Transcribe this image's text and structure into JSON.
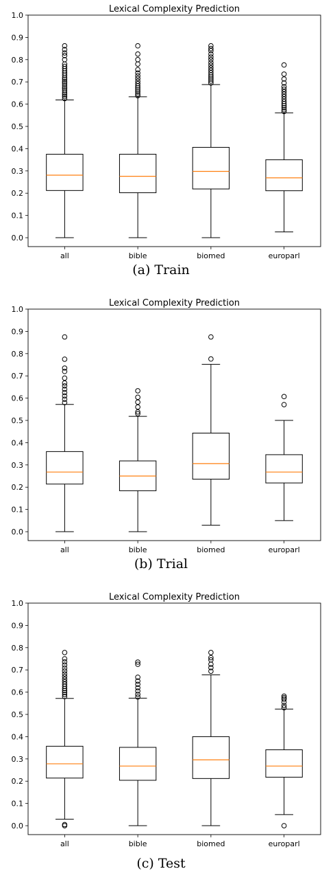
{
  "chart_data": [
    {
      "type": "box",
      "title": "Lexical Complexity Prediction",
      "caption": "(a) Train",
      "categories": [
        "all",
        "bible",
        "biomed",
        "europarl"
      ],
      "ylim": [
        -0.04,
        1.0
      ],
      "yticks": [
        "0.0",
        "0.1",
        "0.2",
        "0.3",
        "0.4",
        "0.5",
        "0.6",
        "0.7",
        "0.8",
        "0.9",
        "1.0"
      ],
      "boxes": [
        {
          "category": "all",
          "whisker_low": 0.0,
          "q1": 0.212,
          "median": 0.281,
          "q3": 0.375,
          "whisker_high": 0.619,
          "outliers": [
            0.625,
            0.634,
            0.642,
            0.65,
            0.66,
            0.669,
            0.677,
            0.686,
            0.695,
            0.703,
            0.712,
            0.72,
            0.73,
            0.74,
            0.75,
            0.76,
            0.77,
            0.78,
            0.8,
            0.818,
            0.83,
            0.845,
            0.862
          ]
        },
        {
          "category": "bible",
          "whisker_low": 0.0,
          "q1": 0.202,
          "median": 0.276,
          "q3": 0.375,
          "whisker_high": 0.633,
          "outliers": [
            0.638,
            0.646,
            0.655,
            0.664,
            0.673,
            0.682,
            0.692,
            0.703,
            0.715,
            0.727,
            0.74,
            0.755,
            0.78,
            0.8,
            0.825,
            0.862
          ]
        },
        {
          "category": "biomed",
          "whisker_low": 0.0,
          "q1": 0.219,
          "median": 0.298,
          "q3": 0.406,
          "whisker_high": 0.688,
          "outliers": [
            0.695,
            0.704,
            0.713,
            0.722,
            0.731,
            0.741,
            0.752,
            0.763,
            0.775,
            0.787,
            0.8,
            0.812,
            0.825,
            0.84,
            0.85,
            0.862
          ]
        },
        {
          "category": "europarl",
          "whisker_low": 0.026,
          "q1": 0.211,
          "median": 0.269,
          "q3": 0.35,
          "whisker_high": 0.561,
          "outliers": [
            0.567,
            0.575,
            0.584,
            0.593,
            0.602,
            0.612,
            0.623,
            0.634,
            0.645,
            0.656,
            0.667,
            0.678,
            0.695,
            0.713,
            0.735,
            0.776
          ]
        }
      ]
    },
    {
      "type": "box",
      "title": "Lexical Complexity Prediction",
      "caption": "(b) Trial",
      "categories": [
        "all",
        "bible",
        "biomed",
        "europarl"
      ],
      "ylim": [
        -0.04,
        1.0
      ],
      "yticks": [
        "0.0",
        "0.1",
        "0.2",
        "0.3",
        "0.4",
        "0.5",
        "0.6",
        "0.7",
        "0.8",
        "0.9",
        "1.0"
      ],
      "boxes": [
        {
          "category": "all",
          "whisker_low": 0.0,
          "q1": 0.214,
          "median": 0.268,
          "q3": 0.36,
          "whisker_high": 0.572,
          "outliers": [
            0.58,
            0.595,
            0.61,
            0.625,
            0.64,
            0.655,
            0.668,
            0.69,
            0.72,
            0.735,
            0.775,
            0.875
          ]
        },
        {
          "category": "bible",
          "whisker_low": 0.0,
          "q1": 0.184,
          "median": 0.25,
          "q3": 0.318,
          "whisker_high": 0.518,
          "outliers": [
            0.53,
            0.538,
            0.56,
            0.582,
            0.604,
            0.633
          ]
        },
        {
          "category": "biomed",
          "whisker_low": 0.029,
          "q1": 0.236,
          "median": 0.306,
          "q3": 0.443,
          "whisker_high": 0.752,
          "outliers": [
            0.776,
            0.875
          ]
        },
        {
          "category": "europarl",
          "whisker_low": 0.05,
          "q1": 0.219,
          "median": 0.268,
          "q3": 0.346,
          "whisker_high": 0.5,
          "outliers": [
            0.571,
            0.607
          ]
        }
      ]
    },
    {
      "type": "box",
      "title": "Lexical Complexity Prediction",
      "caption": "(c) Test",
      "categories": [
        "all",
        "bible",
        "biomed",
        "europarl"
      ],
      "ylim": [
        -0.04,
        1.0
      ],
      "yticks": [
        "0.0",
        "0.1",
        "0.2",
        "0.3",
        "0.4",
        "0.5",
        "0.6",
        "0.7",
        "0.8",
        "0.9",
        "1.0"
      ],
      "boxes": [
        {
          "category": "all",
          "whisker_low": 0.029,
          "q1": 0.214,
          "median": 0.278,
          "q3": 0.357,
          "whisker_high": 0.572,
          "outliers": [
            0.0,
            0.005,
            0.58,
            0.589,
            0.598,
            0.607,
            0.616,
            0.626,
            0.636,
            0.647,
            0.658,
            0.67,
            0.682,
            0.695,
            0.708,
            0.722,
            0.736,
            0.75,
            0.778
          ]
        },
        {
          "category": "bible",
          "whisker_low": 0.0,
          "q1": 0.204,
          "median": 0.268,
          "q3": 0.352,
          "whisker_high": 0.573,
          "outliers": [
            0.578,
            0.59,
            0.605,
            0.62,
            0.635,
            0.65,
            0.667,
            0.725,
            0.735
          ]
        },
        {
          "category": "biomed",
          "whisker_low": 0.0,
          "q1": 0.212,
          "median": 0.296,
          "q3": 0.4,
          "whisker_high": 0.678,
          "outliers": [
            0.694,
            0.71,
            0.725,
            0.745,
            0.755,
            0.778
          ]
        },
        {
          "category": "europarl",
          "whisker_low": 0.05,
          "q1": 0.218,
          "median": 0.268,
          "q3": 0.341,
          "whisker_high": 0.524,
          "outliers": [
            0.0,
            0.53,
            0.54,
            0.555,
            0.568,
            0.575,
            0.582
          ]
        }
      ]
    }
  ]
}
